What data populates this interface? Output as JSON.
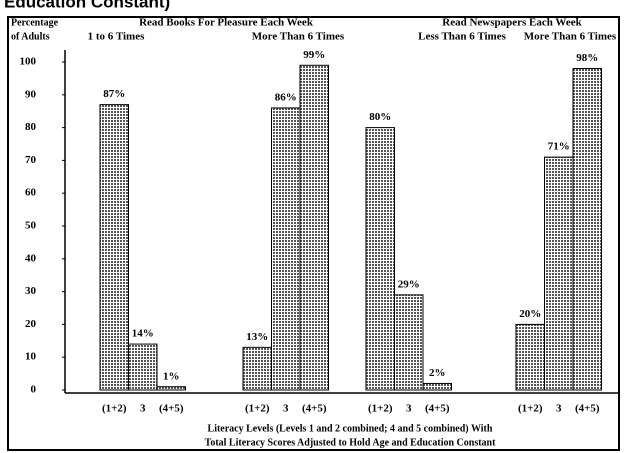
{
  "chart_data": {
    "type": "bar",
    "title": "Education Constant)",
    "y_label": [
      "Percentage",
      "of Adults"
    ],
    "x_label": [
      "Literacy Levels (Levels 1 and 2 combined; 4 and 5 combined) With",
      "Total Literacy Scores Adjusted to Hold Age and Education Constant"
    ],
    "categories": [
      "(1+2)",
      "3",
      "(4+5)"
    ],
    "panels": [
      {
        "title": "Read Books For Pleasure  Each Week",
        "series": [
          {
            "name": "1 to 6 Times",
            "values": [
              87,
              14,
              1
            ],
            "value_labels": [
              "87%",
              "14%",
              "1%"
            ]
          },
          {
            "name": "More Than 6 Times",
            "values": [
              13,
              86,
              99
            ],
            "value_labels": [
              "13%",
              "86%",
              "99%"
            ]
          }
        ]
      },
      {
        "title": "Read Newspapers Each Week",
        "series": [
          {
            "name": "Less Than 6 Times",
            "values": [
              80,
              29,
              2
            ],
            "value_labels": [
              "80%",
              "29%",
              "2%"
            ]
          },
          {
            "name": "More Than 6 Times",
            "values": [
              20,
              71,
              98
            ],
            "value_labels": [
              "20%",
              "71%",
              "98%"
            ]
          }
        ]
      }
    ],
    "ylim": [
      0,
      100
    ],
    "yticks": [
      0,
      10,
      20,
      30,
      40,
      50,
      60,
      70,
      80,
      90,
      100
    ],
    "color": "#bdbdbd"
  }
}
